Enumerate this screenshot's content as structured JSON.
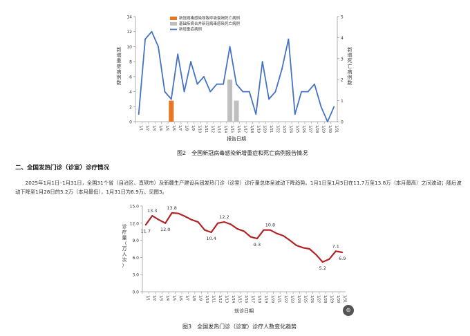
{
  "figure2": {
    "caption": "图2　全国新冠病毒感染新增重症和死亡病例报告情况",
    "chart_data": {
      "type": "line+bar",
      "xlabel": "报告日期",
      "ylabel_left": "新增重症病例数",
      "ylabel_right": "新增死亡病例数",
      "ylim_left": [
        0,
        14
      ],
      "ylim_right": [
        0,
        5
      ],
      "yticks_left": [
        "0",
        "2",
        "4",
        "6",
        "8",
        "10",
        "12",
        "14"
      ],
      "yticks_right": [
        "0",
        "1",
        "2",
        "3",
        "4",
        "5"
      ],
      "categories": [
        "1/1",
        "1/2",
        "1/3",
        "1/4",
        "1/5",
        "1/6",
        "1/7",
        "1/8",
        "1/9",
        "1/10",
        "1/11",
        "1/12",
        "1/13",
        "1/14",
        "1/15",
        "1/16",
        "1/17",
        "1/18",
        "1/19",
        "1/20",
        "1/21",
        "1/22",
        "1/23",
        "1/24",
        "1/25",
        "1/26",
        "1/27",
        "1/28",
        "1/29",
        "1/30",
        "1/31"
      ],
      "legend": [
        {
          "name": "新冠病毒感染导致呼吸衰竭死亡病例",
          "color": "#e87722",
          "kind": "bar"
        },
        {
          "name": "基础疾病合并新冠病毒感染死亡病例",
          "color": "#bfbfbf",
          "kind": "bar"
        },
        {
          "name": "新增重症病例",
          "color": "#4472c4",
          "kind": "line"
        }
      ],
      "series": [
        {
          "name": "新增重症病例",
          "axis": "left",
          "values": [
            1,
            11,
            12,
            10,
            4,
            3,
            9,
            4,
            8,
            5,
            6,
            4,
            5,
            5,
            10,
            5,
            4,
            4,
            1,
            8,
            3,
            4,
            7,
            11,
            1,
            4,
            4,
            5,
            2,
            0,
            2
          ]
        },
        {
          "name": "新冠病毒感染导致呼吸衰竭死亡病例",
          "axis": "right",
          "values": [
            0,
            0,
            0,
            0,
            0,
            1,
            0,
            0,
            0,
            0,
            0,
            0,
            0,
            0,
            0,
            0,
            0,
            0,
            0,
            0,
            0,
            0,
            0,
            0,
            0,
            0,
            0,
            0,
            0,
            0,
            0
          ]
        },
        {
          "name": "基础疾病合并新冠病毒感染死亡病例",
          "axis": "right",
          "values": [
            0,
            0,
            0,
            0,
            0,
            0,
            0,
            0,
            0,
            0,
            0,
            0,
            0,
            0,
            2,
            1,
            0,
            0,
            0,
            0,
            0,
            0,
            0,
            0,
            0,
            0,
            0,
            0,
            0,
            0,
            0
          ]
        }
      ]
    }
  },
  "section": {
    "title": "二、全国发热门诊（诊室）诊疗情况",
    "paragraph": "2025年1月1日–1月31日，全国31个省（自治区、直辖市）及新疆生产建设兵团发热门诊（诊室）诊疗量总体呈波动下降趋势。1月1日至1月5日在11.7万至13.8万（本月最高）之间波动；随后波动下降至1月28日的5.2万（本月最低），1月31日为6.9万。见图3。"
  },
  "figure3": {
    "caption": "图3　全国发热门诊（诊室）诊疗人数变化趋势",
    "chart_data": {
      "type": "line",
      "xlabel": "就诊日期",
      "ylabel": "诊疗量（万人次）",
      "ylim": [
        0,
        15
      ],
      "yticks": [
        "0.0",
        "3.0",
        "6.0",
        "9.0",
        "12.0",
        "15.0"
      ],
      "categories": [
        "1/1",
        "1/2",
        "1/3",
        "1/4",
        "1/5",
        "1/6",
        "1/7",
        "1/8",
        "1/9",
        "1/10",
        "1/11",
        "1/12",
        "1/13",
        "1/14",
        "1/15",
        "1/16",
        "1/17",
        "1/18",
        "1/19",
        "1/20",
        "1/21",
        "1/22",
        "1/23",
        "1/24",
        "1/25",
        "1/26",
        "1/27",
        "1/28",
        "1/29",
        "1/30",
        "1/31"
      ],
      "series": [
        {
          "name": "诊疗量",
          "color": "#b22222",
          "values": [
            11.7,
            13.3,
            12.6,
            12.0,
            13.8,
            13.7,
            13.2,
            12.6,
            12.2,
            10.8,
            10.4,
            12.0,
            12.2,
            11.8,
            11.0,
            10.6,
            9.6,
            9.3,
            10.8,
            10.8,
            10.2,
            9.8,
            9.0,
            8.1,
            7.7,
            7.5,
            6.5,
            5.2,
            5.7,
            7.1,
            6.9
          ]
        }
      ],
      "data_labels": [
        {
          "index": 0,
          "text": "11.7"
        },
        {
          "index": 1,
          "text": "13.3"
        },
        {
          "index": 3,
          "text": "12.0"
        },
        {
          "index": 4,
          "text": "13.8"
        },
        {
          "index": 10,
          "text": "10.4"
        },
        {
          "index": 12,
          "text": "12.2"
        },
        {
          "index": 17,
          "text": "9.3"
        },
        {
          "index": 19,
          "text": "10.8"
        },
        {
          "index": 27,
          "text": "5.2"
        },
        {
          "index": 29,
          "text": "7.1"
        },
        {
          "index": 30,
          "text": "6.9"
        }
      ]
    }
  },
  "fab": {
    "icon": "sticker-icon",
    "glyph": "⊜"
  }
}
